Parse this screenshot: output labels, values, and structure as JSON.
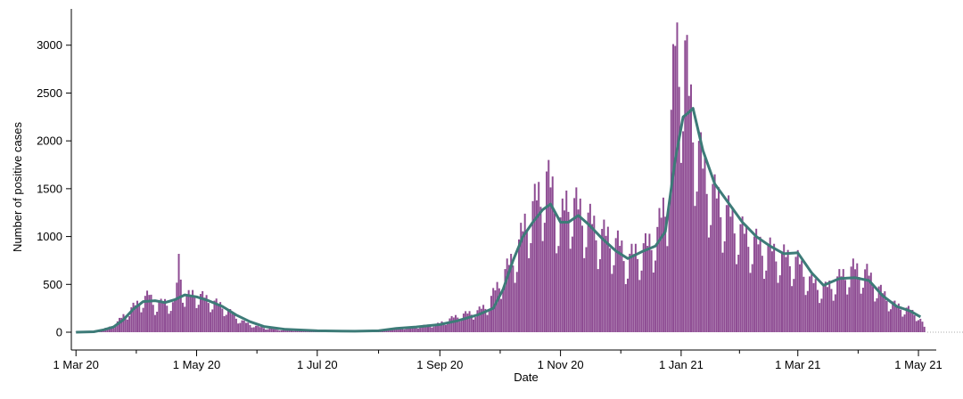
{
  "chart_data": {
    "type": "bar",
    "title": "",
    "xlabel": "Date",
    "ylabel": "Number of positive cases",
    "ylim": [
      0,
      3100
    ],
    "xlim": [
      "2020-02-29",
      "2021-05-10"
    ],
    "grid": false,
    "legend": "none",
    "yticks": [
      0,
      500,
      1000,
      1500,
      2000,
      2500,
      3000
    ],
    "xticks": [
      {
        "date": "2020-03-01",
        "label": "1 Mar 20"
      },
      {
        "date": "2020-05-01",
        "label": "1 May 20"
      },
      {
        "date": "2020-07-01",
        "label": "1 Jul 20"
      },
      {
        "date": "2020-09-01",
        "label": "1 Sep 20"
      },
      {
        "date": "2020-11-01",
        "label": "1 Nov 20"
      },
      {
        "date": "2021-01-01",
        "label": "1 Jan 21"
      },
      {
        "date": "2021-03-01",
        "label": "1 Mar 21"
      },
      {
        "date": "2021-05-01",
        "label": "1 May 21"
      }
    ],
    "series": [
      {
        "kind": "bar",
        "color": "#8e4c93",
        "description": "daily positive cases (values estimated from image, listed at selected dates)",
        "points": [
          [
            "2020-03-01",
            2
          ],
          [
            "2020-03-10",
            10
          ],
          [
            "2020-03-15",
            35
          ],
          [
            "2020-03-20",
            70
          ],
          [
            "2020-03-25",
            180
          ],
          [
            "2020-03-30",
            280
          ],
          [
            "2020-04-05",
            380
          ],
          [
            "2020-04-07",
            410
          ],
          [
            "2020-04-10",
            300
          ],
          [
            "2020-04-15",
            330
          ],
          [
            "2020-04-20",
            310
          ],
          [
            "2020-04-22",
            780
          ],
          [
            "2020-04-25",
            380
          ],
          [
            "2020-04-30",
            430
          ],
          [
            "2020-05-05",
            380
          ],
          [
            "2020-05-10",
            330
          ],
          [
            "2020-05-15",
            280
          ],
          [
            "2020-05-20",
            180
          ],
          [
            "2020-05-25",
            110
          ],
          [
            "2020-06-01",
            60
          ],
          [
            "2020-06-10",
            30
          ],
          [
            "2020-06-20",
            20
          ],
          [
            "2020-07-01",
            10
          ],
          [
            "2020-07-15",
            12
          ],
          [
            "2020-07-31",
            15
          ],
          [
            "2020-08-10",
            40
          ],
          [
            "2020-08-20",
            60
          ],
          [
            "2020-08-31",
            90
          ],
          [
            "2020-09-10",
            180
          ],
          [
            "2020-09-20",
            230
          ],
          [
            "2020-09-25",
            300
          ],
          [
            "2020-09-30",
            500
          ],
          [
            "2020-10-05",
            700
          ],
          [
            "2020-10-10",
            900
          ],
          [
            "2020-10-15",
            1250
          ],
          [
            "2020-10-20",
            1450
          ],
          [
            "2020-10-25",
            1680
          ],
          [
            "2020-10-28",
            1550
          ],
          [
            "2020-11-01",
            1200
          ],
          [
            "2020-11-05",
            1480
          ],
          [
            "2020-11-10",
            1350
          ],
          [
            "2020-11-15",
            1250
          ],
          [
            "2020-11-20",
            1100
          ],
          [
            "2020-11-25",
            1050
          ],
          [
            "2020-12-01",
            950
          ],
          [
            "2020-12-05",
            800
          ],
          [
            "2020-12-10",
            900
          ],
          [
            "2020-12-15",
            950
          ],
          [
            "2020-12-20",
            1100
          ],
          [
            "2020-12-25",
            1500
          ],
          [
            "2020-12-29",
            3150
          ],
          [
            "2021-01-01",
            2950
          ],
          [
            "2021-01-03",
            3050
          ],
          [
            "2021-01-05",
            2600
          ],
          [
            "2021-01-08",
            2200
          ],
          [
            "2021-01-12",
            1800
          ],
          [
            "2021-01-18",
            1500
          ],
          [
            "2021-01-25",
            1300
          ],
          [
            "2021-02-01",
            1100
          ],
          [
            "2021-02-10",
            950
          ],
          [
            "2021-02-20",
            850
          ],
          [
            "2021-03-01",
            780
          ],
          [
            "2021-03-08",
            550
          ],
          [
            "2021-03-15",
            480
          ],
          [
            "2021-03-22",
            600
          ],
          [
            "2021-03-29",
            700
          ],
          [
            "2021-04-05",
            650
          ],
          [
            "2021-04-12",
            450
          ],
          [
            "2021-04-19",
            300
          ],
          [
            "2021-04-26",
            250
          ],
          [
            "2021-05-01",
            180
          ],
          [
            "2021-05-04",
            60
          ]
        ]
      },
      {
        "kind": "line",
        "color": "#3d7b78",
        "description": "7-day rolling average (estimated)",
        "points": [
          [
            "2020-03-01",
            0
          ],
          [
            "2020-03-10",
            5
          ],
          [
            "2020-03-15",
            25
          ],
          [
            "2020-03-20",
            55
          ],
          [
            "2020-03-25",
            130
          ],
          [
            "2020-03-30",
            240
          ],
          [
            "2020-04-04",
            320
          ],
          [
            "2020-04-10",
            330
          ],
          [
            "2020-04-15",
            310
          ],
          [
            "2020-04-20",
            340
          ],
          [
            "2020-04-25",
            390
          ],
          [
            "2020-05-01",
            370
          ],
          [
            "2020-05-07",
            330
          ],
          [
            "2020-05-14",
            270
          ],
          [
            "2020-05-21",
            180
          ],
          [
            "2020-05-28",
            110
          ],
          [
            "2020-06-04",
            60
          ],
          [
            "2020-06-15",
            30
          ],
          [
            "2020-07-01",
            15
          ],
          [
            "2020-07-20",
            10
          ],
          [
            "2020-08-01",
            15
          ],
          [
            "2020-08-10",
            40
          ],
          [
            "2020-08-20",
            55
          ],
          [
            "2020-09-01",
            80
          ],
          [
            "2020-09-10",
            120
          ],
          [
            "2020-09-20",
            180
          ],
          [
            "2020-09-28",
            250
          ],
          [
            "2020-10-03",
            450
          ],
          [
            "2020-10-08",
            750
          ],
          [
            "2020-10-13",
            1000
          ],
          [
            "2020-10-18",
            1150
          ],
          [
            "2020-10-23",
            1280
          ],
          [
            "2020-10-27",
            1340
          ],
          [
            "2020-11-01",
            1150
          ],
          [
            "2020-11-05",
            1150
          ],
          [
            "2020-11-10",
            1220
          ],
          [
            "2020-11-15",
            1130
          ],
          [
            "2020-11-22",
            980
          ],
          [
            "2020-11-29",
            850
          ],
          [
            "2020-12-05",
            770
          ],
          [
            "2020-12-12",
            840
          ],
          [
            "2020-12-19",
            900
          ],
          [
            "2020-12-24",
            1050
          ],
          [
            "2020-12-29",
            1800
          ],
          [
            "2021-01-02",
            2250
          ],
          [
            "2021-01-05",
            2300
          ],
          [
            "2021-01-07",
            2340
          ],
          [
            "2021-01-12",
            1900
          ],
          [
            "2021-01-18",
            1550
          ],
          [
            "2021-01-25",
            1350
          ],
          [
            "2021-02-01",
            1150
          ],
          [
            "2021-02-08",
            1000
          ],
          [
            "2021-02-15",
            900
          ],
          [
            "2021-02-22",
            820
          ],
          [
            "2021-03-01",
            830
          ],
          [
            "2021-03-08",
            620
          ],
          [
            "2021-03-14",
            490
          ],
          [
            "2021-03-22",
            560
          ],
          [
            "2021-03-30",
            570
          ],
          [
            "2021-04-06",
            540
          ],
          [
            "2021-04-13",
            380
          ],
          [
            "2021-04-20",
            270
          ],
          [
            "2021-04-27",
            220
          ],
          [
            "2021-05-02",
            160
          ]
        ]
      }
    ]
  }
}
